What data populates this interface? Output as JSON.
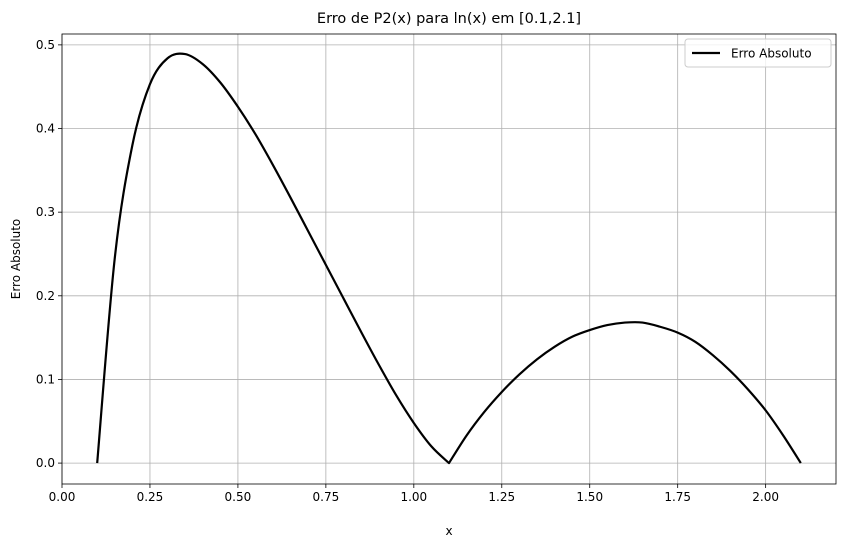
{
  "chart_data": {
    "type": "line",
    "title": "Erro de P2(x) para ln(x) em [0.1,2.1]",
    "xlabel": "x",
    "ylabel": "Erro Absoluto",
    "xlim": [
      0.0,
      2.2
    ],
    "ylim": [
      -0.025,
      0.513
    ],
    "xticks": [
      0.0,
      0.25,
      0.5,
      0.75,
      1.0,
      1.25,
      1.5,
      1.75,
      2.0
    ],
    "xtick_labels": [
      "0.00",
      "0.25",
      "0.50",
      "0.75",
      "1.00",
      "1.25",
      "1.50",
      "1.75",
      "2.00"
    ],
    "yticks": [
      0.0,
      0.1,
      0.2,
      0.3,
      0.4,
      0.5
    ],
    "ytick_labels": [
      "0.0",
      "0.1",
      "0.2",
      "0.3",
      "0.4",
      "0.5"
    ],
    "grid": true,
    "legend": "top-right",
    "series": [
      {
        "name": "Erro Absoluto",
        "color": "#000000",
        "x": [
          0.1,
          0.15,
          0.2,
          0.25,
          0.3,
          0.35,
          0.4,
          0.45,
          0.5,
          0.55,
          0.6,
          0.65,
          0.7,
          0.75,
          0.8,
          0.85,
          0.9,
          0.95,
          1.0,
          1.05,
          1.1,
          1.15,
          1.2,
          1.25,
          1.3,
          1.35,
          1.4,
          1.45,
          1.5,
          1.55,
          1.6,
          1.65,
          1.7,
          1.75,
          1.8,
          1.85,
          1.9,
          1.95,
          2.0,
          2.05,
          2.1
        ],
        "y": [
          0.0,
          0.245,
          0.38,
          0.453,
          0.484,
          0.489,
          0.477,
          0.455,
          0.426,
          0.393,
          0.356,
          0.317,
          0.277,
          0.237,
          0.197,
          0.157,
          0.118,
          0.081,
          0.048,
          0.02,
          0.0,
          0.033,
          0.061,
          0.085,
          0.106,
          0.124,
          0.139,
          0.151,
          0.159,
          0.165,
          0.168,
          0.168,
          0.163,
          0.156,
          0.145,
          0.129,
          0.11,
          0.088,
          0.063,
          0.033,
          0.0
        ]
      }
    ]
  }
}
